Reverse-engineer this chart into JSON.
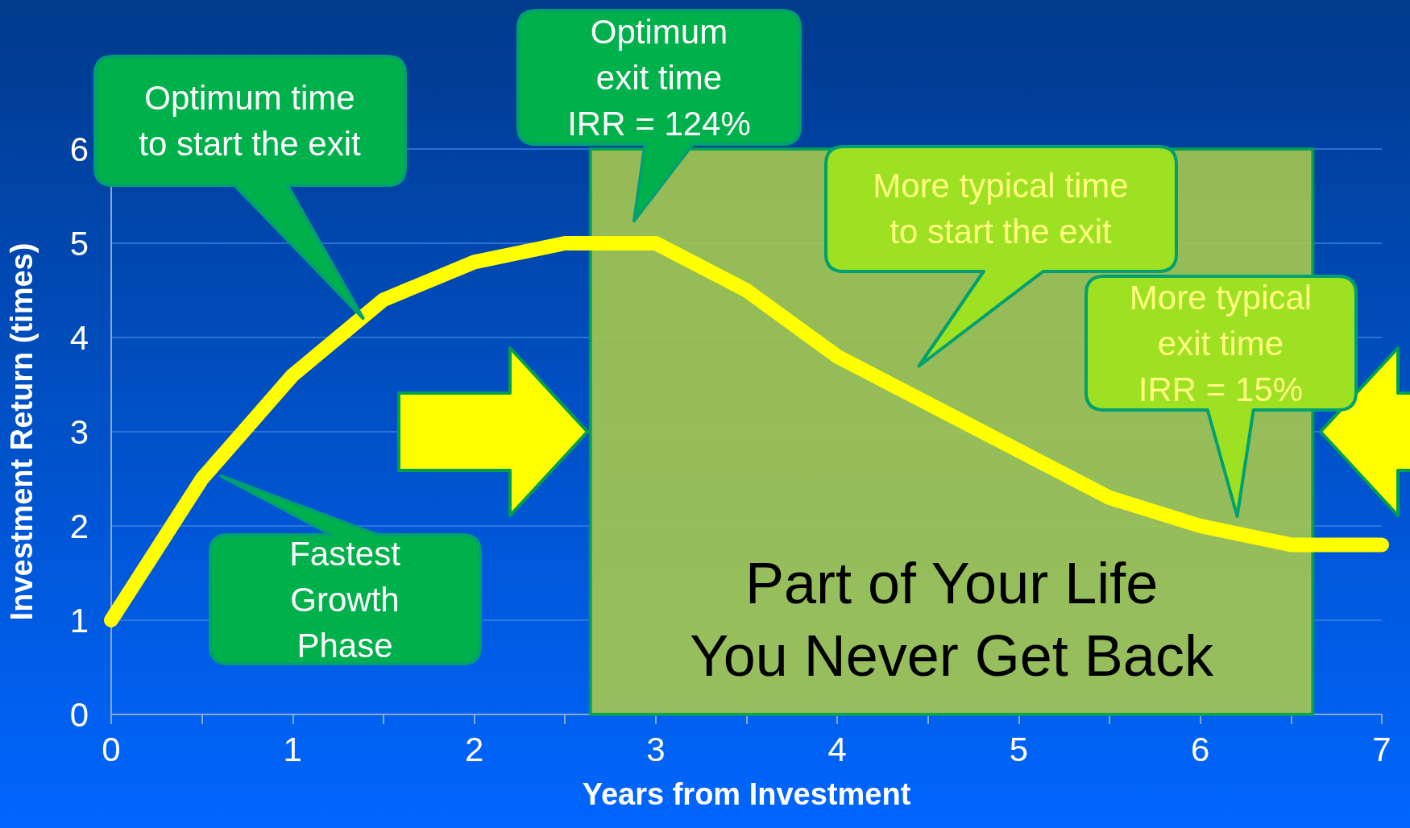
{
  "chart_data": {
    "type": "line",
    "xlabel": "Years from Investment",
    "ylabel": "Investment Return (times)",
    "x": [
      0,
      0.5,
      1,
      1.5,
      2,
      2.5,
      3,
      3.5,
      4,
      4.5,
      5,
      5.5,
      6,
      6.5,
      7
    ],
    "series": [
      {
        "color": "#ffff00",
        "values": [
          1.0,
          2.5,
          3.6,
          4.4,
          4.8,
          5.0,
          5.0,
          4.5,
          3.8,
          3.3,
          2.8,
          2.3,
          2.0,
          1.8,
          1.8
        ]
      }
    ],
    "xlim": [
      0,
      7
    ],
    "ylim": [
      0,
      6
    ],
    "xticks": [
      0,
      {
        "value": 0.5,
        "label": null
      },
      1,
      {
        "value": 1.5,
        "label": null
      },
      2,
      {
        "value": 2.5,
        "label": null
      },
      3,
      {
        "value": 3.5,
        "label": null
      },
      4,
      {
        "value": 4.5,
        "label": null
      },
      5,
      {
        "value": 5.5,
        "label": null
      },
      6,
      {
        "value": 6.5,
        "label": null
      },
      7
    ],
    "yticks": [
      0,
      1,
      2,
      3,
      4,
      5,
      6
    ],
    "grid": "y",
    "marker": "none",
    "line_style": "solid",
    "bands": [
      {
        "axis": "x",
        "from": 2.64,
        "to": 6.62,
        "label": "Part of Your Life\nYou Never Get Back",
        "color": "#a6c94e"
      }
    ],
    "annotations": [
      "Optimum time\nto start the exit",
      "Optimum\nexit time\nIRR = 124%",
      "Fastest\nGrowth\nPhase",
      "More typical time\nto start the exit",
      "More typical\nexit time\nIRR = 15%"
    ]
  }
}
